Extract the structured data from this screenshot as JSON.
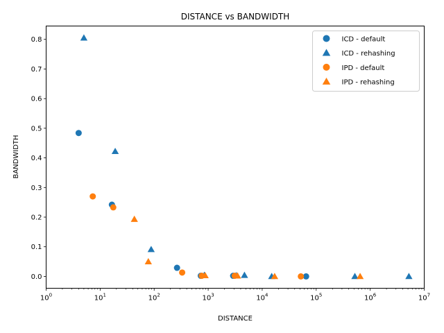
{
  "chart_data": {
    "type": "scatter",
    "title": "DISTANCE vs BANDWIDTH",
    "xlabel": "DISTANCE",
    "ylabel": "BANDWIDTH",
    "xscale": "log",
    "xlim": [
      1,
      10000000
    ],
    "ylim": [
      -0.04,
      0.845
    ],
    "x_ticks": [
      {
        "value": 1,
        "base": "10",
        "exp": "0"
      },
      {
        "value": 10,
        "base": "10",
        "exp": "1"
      },
      {
        "value": 100,
        "base": "10",
        "exp": "2"
      },
      {
        "value": 1000,
        "base": "10",
        "exp": "3"
      },
      {
        "value": 10000,
        "base": "10",
        "exp": "4"
      },
      {
        "value": 100000,
        "base": "10",
        "exp": "5"
      },
      {
        "value": 1000000,
        "base": "10",
        "exp": "6"
      },
      {
        "value": 10000000,
        "base": "10",
        "exp": "7"
      }
    ],
    "y_ticks": [
      {
        "value": 0.0,
        "label": "0.0"
      },
      {
        "value": 0.1,
        "label": "0.1"
      },
      {
        "value": 0.2,
        "label": "0.2"
      },
      {
        "value": 0.3,
        "label": "0.3"
      },
      {
        "value": 0.4,
        "label": "0.4"
      },
      {
        "value": 0.5,
        "label": "0.5"
      },
      {
        "value": 0.6,
        "label": "0.6"
      },
      {
        "value": 0.7,
        "label": "0.7"
      },
      {
        "value": 0.8,
        "label": "0.8"
      }
    ],
    "legend_position": "top-right",
    "series": [
      {
        "name": "ICD - default",
        "color": "#1f77b4",
        "marker": "circle",
        "points": [
          {
            "x": 4,
            "y": 0.484
          },
          {
            "x": 16.5,
            "y": 0.242
          },
          {
            "x": 265,
            "y": 0.029
          },
          {
            "x": 730,
            "y": 0.002
          },
          {
            "x": 2900,
            "y": 0.002
          },
          {
            "x": 65000,
            "y": 0.0
          }
        ]
      },
      {
        "name": "ICD - rehashing",
        "color": "#1f77b4",
        "marker": "triangle",
        "points": [
          {
            "x": 5,
            "y": 0.805
          },
          {
            "x": 19,
            "y": 0.422
          },
          {
            "x": 88,
            "y": 0.091
          },
          {
            "x": 850,
            "y": 0.004
          },
          {
            "x": 3300,
            "y": 0.003
          },
          {
            "x": 4700,
            "y": 0.004
          },
          {
            "x": 15000,
            "y": 0.0
          },
          {
            "x": 520000,
            "y": 0.0
          },
          {
            "x": 5200000,
            "y": 0.0
          }
        ]
      },
      {
        "name": "IPD - default",
        "color": "#ff7f0e",
        "marker": "circle",
        "points": [
          {
            "x": 7.3,
            "y": 0.27
          },
          {
            "x": 17.5,
            "y": 0.233
          },
          {
            "x": 330,
            "y": 0.013
          },
          {
            "x": 760,
            "y": 0.002
          },
          {
            "x": 3100,
            "y": 0.002
          },
          {
            "x": 52000,
            "y": 0.0
          }
        ]
      },
      {
        "name": "IPD - rehashing",
        "color": "#ff7f0e",
        "marker": "triangle",
        "points": [
          {
            "x": 43,
            "y": 0.193
          },
          {
            "x": 78,
            "y": 0.05
          },
          {
            "x": 880,
            "y": 0.003
          },
          {
            "x": 3500,
            "y": 0.002
          },
          {
            "x": 17000,
            "y": 0.0
          },
          {
            "x": 650000,
            "y": 0.0
          }
        ]
      }
    ]
  }
}
